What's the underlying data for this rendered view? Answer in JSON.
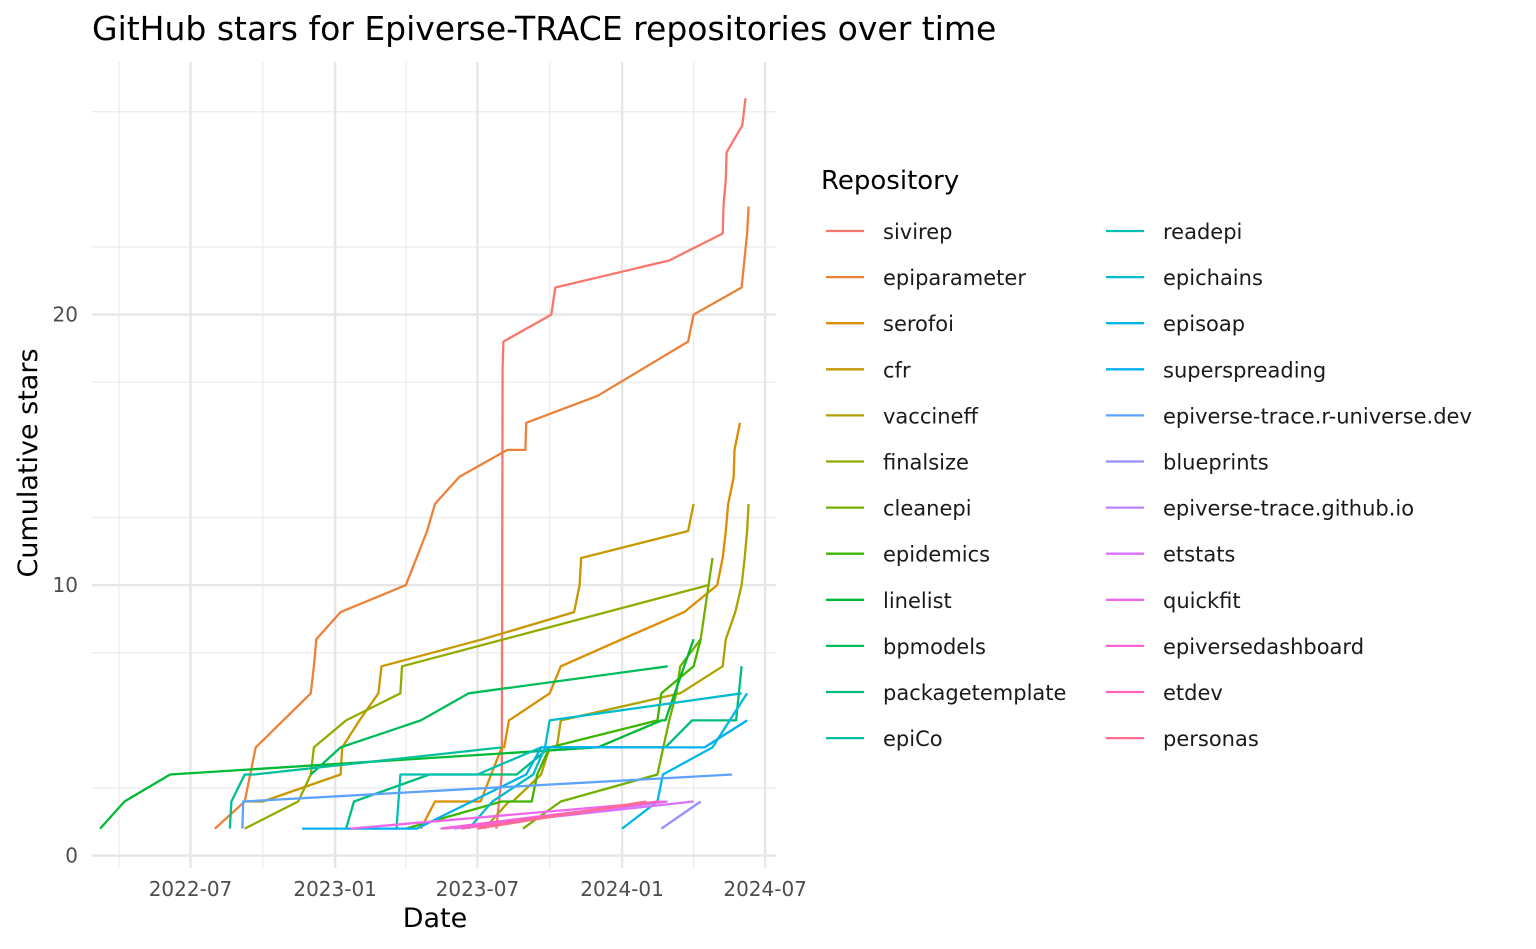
{
  "chart_data": {
    "type": "line",
    "title": "GitHub stars for Epiverse-TRACE repositories over time",
    "xlabel": "Date",
    "ylabel": "Cumulative stars",
    "x_ticks": [
      "2022-07",
      "2023-01",
      "2023-07",
      "2024-01",
      "2024-07"
    ],
    "y_ticks": [
      0,
      10,
      20
    ],
    "xlim": [
      "2022-03-08",
      "2024-07-18"
    ],
    "ylim": [
      0,
      28
    ],
    "grid": true,
    "legend": {
      "title": "Repository",
      "position": "right",
      "columns": 2
    },
    "series": [
      {
        "name": "sivirep",
        "color": "#F8766D",
        "points": [
          [
            "2023-07-25",
            1
          ],
          [
            "2023-08-01",
            3
          ],
          [
            "2023-08-02",
            18
          ],
          [
            "2023-08-03",
            19
          ],
          [
            "2023-10-03",
            20
          ],
          [
            "2023-10-08",
            21
          ],
          [
            "2024-03-01",
            22
          ],
          [
            "2024-05-08",
            23
          ],
          [
            "2024-05-09",
            24
          ],
          [
            "2024-05-12",
            25
          ],
          [
            "2024-05-13",
            26
          ],
          [
            "2024-06-02",
            27
          ],
          [
            "2024-06-06",
            28
          ]
        ]
      },
      {
        "name": "epiparameter",
        "color": "#EC8239",
        "points": [
          [
            "2022-08-01",
            1
          ],
          [
            "2022-09-08",
            2
          ],
          [
            "2022-09-22",
            4
          ],
          [
            "2022-12-01",
            6
          ],
          [
            "2022-12-05",
            7
          ],
          [
            "2022-12-08",
            8
          ],
          [
            "2023-01-08",
            9
          ],
          [
            "2023-04-01",
            10
          ],
          [
            "2023-04-28",
            12
          ],
          [
            "2023-05-08",
            13
          ],
          [
            "2023-06-08",
            14
          ],
          [
            "2023-08-08",
            15
          ],
          [
            "2023-08-31",
            15
          ],
          [
            "2023-09-01",
            16
          ],
          [
            "2023-12-01",
            17
          ],
          [
            "2024-03-25",
            19
          ],
          [
            "2024-04-01",
            20
          ],
          [
            "2024-06-01",
            21
          ],
          [
            "2024-06-08",
            23
          ],
          [
            "2024-06-10",
            24
          ]
        ]
      },
      {
        "name": "serofoi",
        "color": "#DB8E00",
        "points": [
          [
            "2023-04-20",
            1
          ],
          [
            "2023-05-08",
            2
          ],
          [
            "2023-06-20",
            2
          ],
          [
            "2023-07-05",
            2
          ],
          [
            "2023-08-01",
            4
          ],
          [
            "2023-08-04",
            4
          ],
          [
            "2023-08-10",
            5
          ],
          [
            "2023-10-01",
            6
          ],
          [
            "2023-10-15",
            7
          ],
          [
            "2024-01-01",
            8
          ],
          [
            "2024-03-20",
            9
          ],
          [
            "2024-05-01",
            10
          ],
          [
            "2024-05-08",
            11
          ],
          [
            "2024-05-12",
            12
          ],
          [
            "2024-05-15",
            13
          ],
          [
            "2024-05-22",
            14
          ],
          [
            "2024-05-23",
            15
          ],
          [
            "2024-05-30",
            16
          ]
        ]
      },
      {
        "name": "cfr",
        "color": "#C79800",
        "points": [
          [
            "2022-09-05",
            2
          ],
          [
            "2022-10-01",
            2
          ],
          [
            "2023-01-08",
            3
          ],
          [
            "2023-01-10",
            4
          ],
          [
            "2023-02-01",
            5
          ],
          [
            "2023-02-25",
            6
          ],
          [
            "2023-03-01",
            7
          ],
          [
            "2023-07-08",
            8
          ],
          [
            "2023-11-01",
            9
          ],
          [
            "2023-11-08",
            10
          ],
          [
            "2023-11-10",
            11
          ],
          [
            "2024-03-25",
            12
          ],
          [
            "2024-04-01",
            13
          ]
        ]
      },
      {
        "name": "vaccineff",
        "color": "#B0A200",
        "points": [
          [
            "2023-07-10",
            1
          ],
          [
            "2023-08-10",
            2
          ],
          [
            "2023-08-15",
            2
          ],
          [
            "2023-09-20",
            3
          ],
          [
            "2023-10-01",
            4
          ],
          [
            "2023-10-10",
            4
          ],
          [
            "2023-10-15",
            5
          ],
          [
            "2024-03-15",
            6
          ],
          [
            "2024-05-08",
            7
          ],
          [
            "2024-05-12",
            8
          ],
          [
            "2024-05-24",
            9
          ],
          [
            "2024-06-01",
            10
          ],
          [
            "2024-06-05",
            11
          ],
          [
            "2024-06-08",
            12
          ],
          [
            "2024-06-10",
            13
          ]
        ]
      },
      {
        "name": "finalsize",
        "color": "#94AA00",
        "points": [
          [
            "2022-09-08",
            1
          ],
          [
            "2022-11-15",
            2
          ],
          [
            "2022-12-01",
            3
          ],
          [
            "2022-12-05",
            4
          ],
          [
            "2023-01-15",
            5
          ],
          [
            "2023-03-25",
            6
          ],
          [
            "2023-03-27",
            7
          ],
          [
            "2024-04-20",
            10
          ]
        ]
      },
      {
        "name": "cleanepi",
        "color": "#72B000",
        "points": [
          [
            "2023-08-28",
            1
          ],
          [
            "2023-10-15",
            2
          ],
          [
            "2024-02-15",
            3
          ],
          [
            "2024-03-01",
            5
          ],
          [
            "2024-03-10",
            6
          ],
          [
            "2024-03-15",
            7
          ],
          [
            "2024-04-10",
            8
          ],
          [
            "2024-04-25",
            11
          ]
        ]
      },
      {
        "name": "epidemics",
        "color": "#3FB500",
        "points": [
          [
            "2023-04-01",
            1
          ],
          [
            "2023-08-01",
            2
          ],
          [
            "2023-09-08",
            2
          ],
          [
            "2023-09-15",
            3
          ],
          [
            "2023-10-01",
            4
          ],
          [
            "2024-02-15",
            5
          ],
          [
            "2024-02-20",
            6
          ],
          [
            "2024-04-01",
            7
          ],
          [
            "2024-04-10",
            8
          ]
        ]
      },
      {
        "name": "linelist",
        "color": "#00B934",
        "points": [
          [
            "2022-03-08",
            1
          ],
          [
            "2022-04-08",
            2
          ],
          [
            "2022-06-05",
            3
          ],
          [
            "2023-12-01",
            4
          ],
          [
            "2024-02-20",
            5
          ],
          [
            "2024-02-25",
            5
          ],
          [
            "2024-04-01",
            8
          ]
        ]
      },
      {
        "name": "bpmodels",
        "color": "#00BC59",
        "points": [
          [
            "2022-12-01",
            3
          ],
          [
            "2023-01-08",
            4
          ],
          [
            "2023-04-20",
            5
          ],
          [
            "2023-06-20",
            6
          ],
          [
            "2024-02-28",
            7
          ]
        ]
      },
      {
        "name": "packagetemplate",
        "color": "#00BE7A",
        "points": [
          [
            "2023-01-15",
            1
          ],
          [
            "2023-01-25",
            2
          ],
          [
            "2023-05-01",
            3
          ],
          [
            "2023-08-20",
            3
          ],
          [
            "2023-10-01",
            4
          ],
          [
            "2024-02-25",
            4
          ],
          [
            "2024-03-30",
            5
          ],
          [
            "2024-05-25",
            5
          ],
          [
            "2024-06-01",
            7
          ]
        ]
      },
      {
        "name": "epiCo",
        "color": "#00BF99",
        "points": [
          [
            "2022-08-20",
            1
          ],
          [
            "2022-08-22",
            2
          ],
          [
            "2022-09-08",
            3
          ],
          [
            "2022-09-20",
            3
          ],
          [
            "2023-08-01",
            4
          ]
        ]
      },
      {
        "name": "readepi",
        "color": "#00BFB4",
        "points": [
          [
            "2023-03-20",
            1
          ],
          [
            "2023-03-25",
            3
          ],
          [
            "2023-07-01",
            3
          ],
          [
            "2023-09-20",
            4
          ],
          [
            "2024-02-28",
            4
          ]
        ]
      },
      {
        "name": "epichains",
        "color": "#00BCCD",
        "points": [
          [
            "2023-06-20",
            1
          ],
          [
            "2023-07-20",
            2
          ],
          [
            "2023-09-10",
            3
          ],
          [
            "2023-09-25",
            4
          ],
          [
            "2023-10-01",
            5
          ],
          [
            "2024-06-01",
            6
          ]
        ]
      },
      {
        "name": "episoap",
        "color": "#00B8E4",
        "points": [
          [
            "2024-01-01",
            1
          ],
          [
            "2024-02-15",
            2
          ],
          [
            "2024-02-22",
            3
          ],
          [
            "2024-04-25",
            4
          ],
          [
            "2024-06-08",
            6
          ]
        ]
      },
      {
        "name": "superspreading",
        "color": "#00B0F6",
        "points": [
          [
            "2022-11-20",
            1
          ],
          [
            "2023-04-15",
            1
          ],
          [
            "2023-09-01",
            3
          ],
          [
            "2023-09-20",
            4
          ],
          [
            "2024-04-15",
            4
          ],
          [
            "2024-06-08",
            5
          ]
        ]
      },
      {
        "name": "epiverse-trace.r-universe.dev",
        "color": "#5CA2FF",
        "points": [
          [
            "2022-09-05",
            1
          ],
          [
            "2022-09-06",
            2
          ],
          [
            "2024-05-20",
            3
          ]
        ]
      },
      {
        "name": "blueprints",
        "color": "#9590FF",
        "points": [
          [
            "2024-02-20",
            1
          ],
          [
            "2024-04-10",
            2
          ]
        ]
      },
      {
        "name": "epiverse-trace.github.io",
        "color": "#BF80FF",
        "points": [
          [
            "2023-06-01",
            1
          ],
          [
            "2024-02-28",
            2
          ]
        ]
      },
      {
        "name": "etstats",
        "color": "#DB72FB",
        "points": [
          [
            "2023-05-20",
            1
          ],
          [
            "2024-04-01",
            2
          ]
        ]
      },
      {
        "name": "quickfit",
        "color": "#EF67EB",
        "points": [
          [
            "2023-01-20",
            1
          ],
          [
            "2024-02-25",
            2
          ]
        ]
      },
      {
        "name": "epiversedashboard",
        "color": "#FB61D7",
        "points": [
          [
            "2023-05-15",
            1
          ],
          [
            "2024-02-20",
            2
          ]
        ]
      },
      {
        "name": "etdev",
        "color": "#FF62BC",
        "points": [
          [
            "2023-06-10",
            1
          ],
          [
            "2024-02-15",
            2
          ]
        ]
      },
      {
        "name": "personas",
        "color": "#FF6C91",
        "points": [
          [
            "2023-07-01",
            1
          ],
          [
            "2024-02-01",
            2
          ]
        ]
      }
    ]
  }
}
